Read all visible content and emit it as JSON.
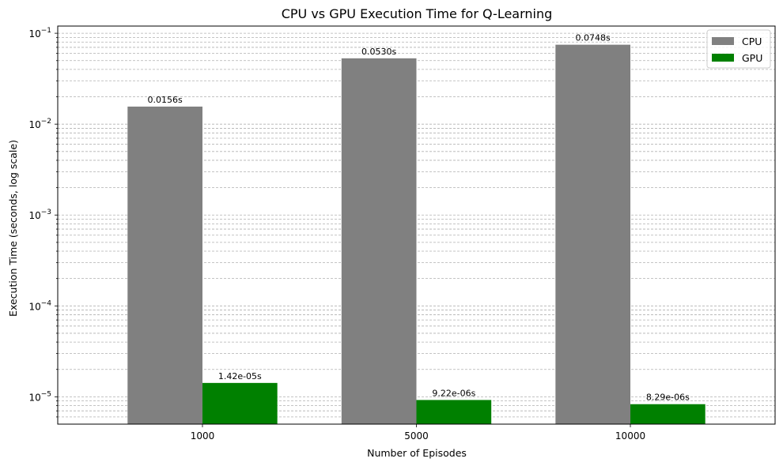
{
  "chart_data": {
    "type": "bar",
    "title": "CPU vs GPU Execution Time for Q-Learning",
    "xlabel": "Number of Episodes",
    "ylabel": "Execution Time (seconds, log scale)",
    "yscale": "log",
    "ylim": [
      5e-06,
      0.12
    ],
    "categories": [
      "1000",
      "5000",
      "10000"
    ],
    "series": [
      {
        "name": "CPU",
        "color": "#808080",
        "values": [
          0.0156,
          0.053,
          0.0748
        ],
        "labels": [
          "0.0156s",
          "0.0530s",
          "0.0748s"
        ]
      },
      {
        "name": "GPU",
        "color": "#008000",
        "values": [
          1.42e-05,
          9.22e-06,
          8.29e-06
        ],
        "labels": [
          "1.42e-05s",
          "9.22e-06s",
          "8.29e-06s"
        ]
      }
    ],
    "y_ticks": [
      {
        "value": 1e-05,
        "base": "10",
        "exp": "−5"
      },
      {
        "value": 0.0001,
        "base": "10",
        "exp": "−4"
      },
      {
        "value": 0.001,
        "base": "10",
        "exp": "−3"
      },
      {
        "value": 0.01,
        "base": "10",
        "exp": "−2"
      },
      {
        "value": 0.1,
        "base": "10",
        "exp": "−1"
      }
    ],
    "grid": "y-major-and-minor-dashed",
    "legend_position": "top-right"
  }
}
